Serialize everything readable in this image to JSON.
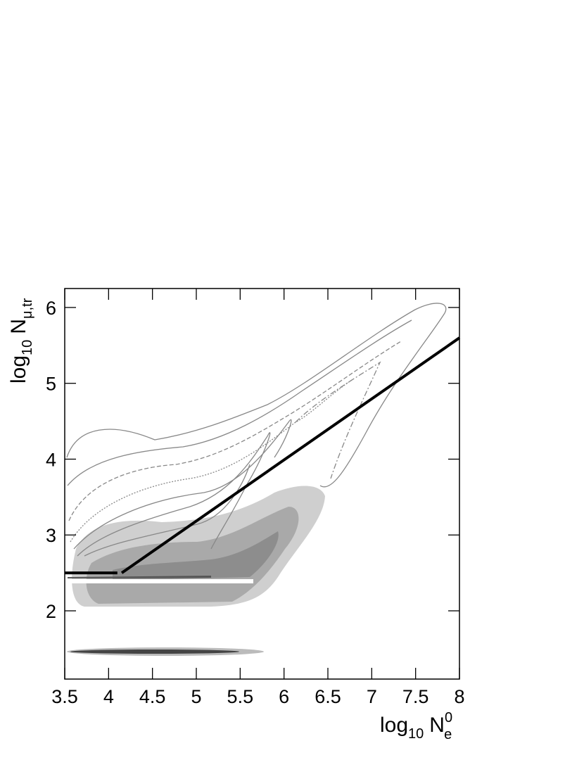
{
  "chart_data": {
    "type": "line",
    "x_label": {
      "base": "log",
      "base_sub": "10",
      "symbol": "N",
      "symbol_sup": "0",
      "symbol_sub": "e"
    },
    "y_label": {
      "base": "log",
      "base_sub": "10",
      "symbol": "N",
      "symbol_sub": "μ,tr"
    },
    "xlim": [
      3.5,
      8
    ],
    "xticks": [
      3.5,
      4,
      4.5,
      5,
      5.5,
      6,
      6.5,
      7,
      7.5,
      8
    ],
    "ylim": [
      1.1,
      6.25
    ],
    "yticks": [
      2,
      3,
      4,
      5,
      6
    ],
    "series": [
      {
        "color": "#000000",
        "x": [
          3.5,
          4.1
        ],
        "values": [
          2.5,
          2.5
        ]
      },
      {
        "color": "#000000",
        "x": [
          4.15,
          8
        ],
        "values": [
          2.5,
          5.6
        ]
      }
    ]
  }
}
